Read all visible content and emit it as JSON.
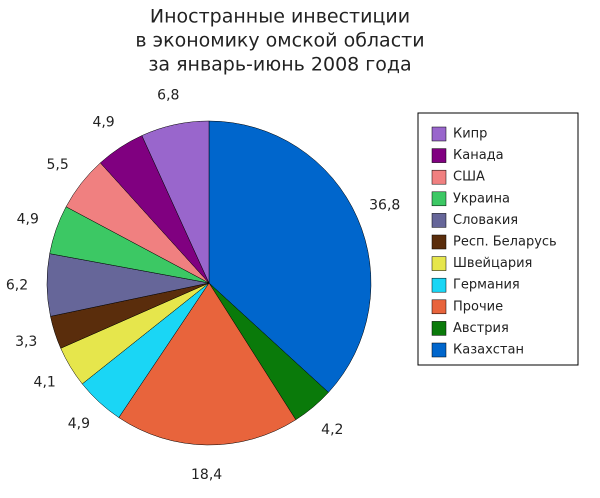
{
  "chart_data": {
    "type": "pie",
    "title": [
      "Иностранные инвестиции",
      "в экономику омской области",
      "за январь-июнь 2008 года"
    ],
    "categories": [
      "Кипр",
      "Канада",
      "США",
      "Украина",
      "Словакия",
      "Респ. Беларусь",
      "Швейцария",
      "Германия",
      "Прочие",
      "Австрия",
      "Казахстан"
    ],
    "values": [
      6.8,
      4.9,
      5.5,
      4.9,
      6.2,
      3.3,
      4.1,
      4.9,
      18.4,
      4.2,
      36.8
    ],
    "value_labels": [
      "6,8",
      "4,9",
      "5,5",
      "4,9",
      "6,2",
      "3,3",
      "4,1",
      "4,9",
      "18,4",
      "4,2",
      "36,8"
    ],
    "colors": [
      "#9966cc",
      "#800080",
      "#f08080",
      "#3cc864",
      "#666699",
      "#5a2d0c",
      "#e6e64c",
      "#1ad6f5",
      "#e8643c",
      "#0a7a0a",
      "#0066cc"
    ],
    "legend": "right"
  }
}
